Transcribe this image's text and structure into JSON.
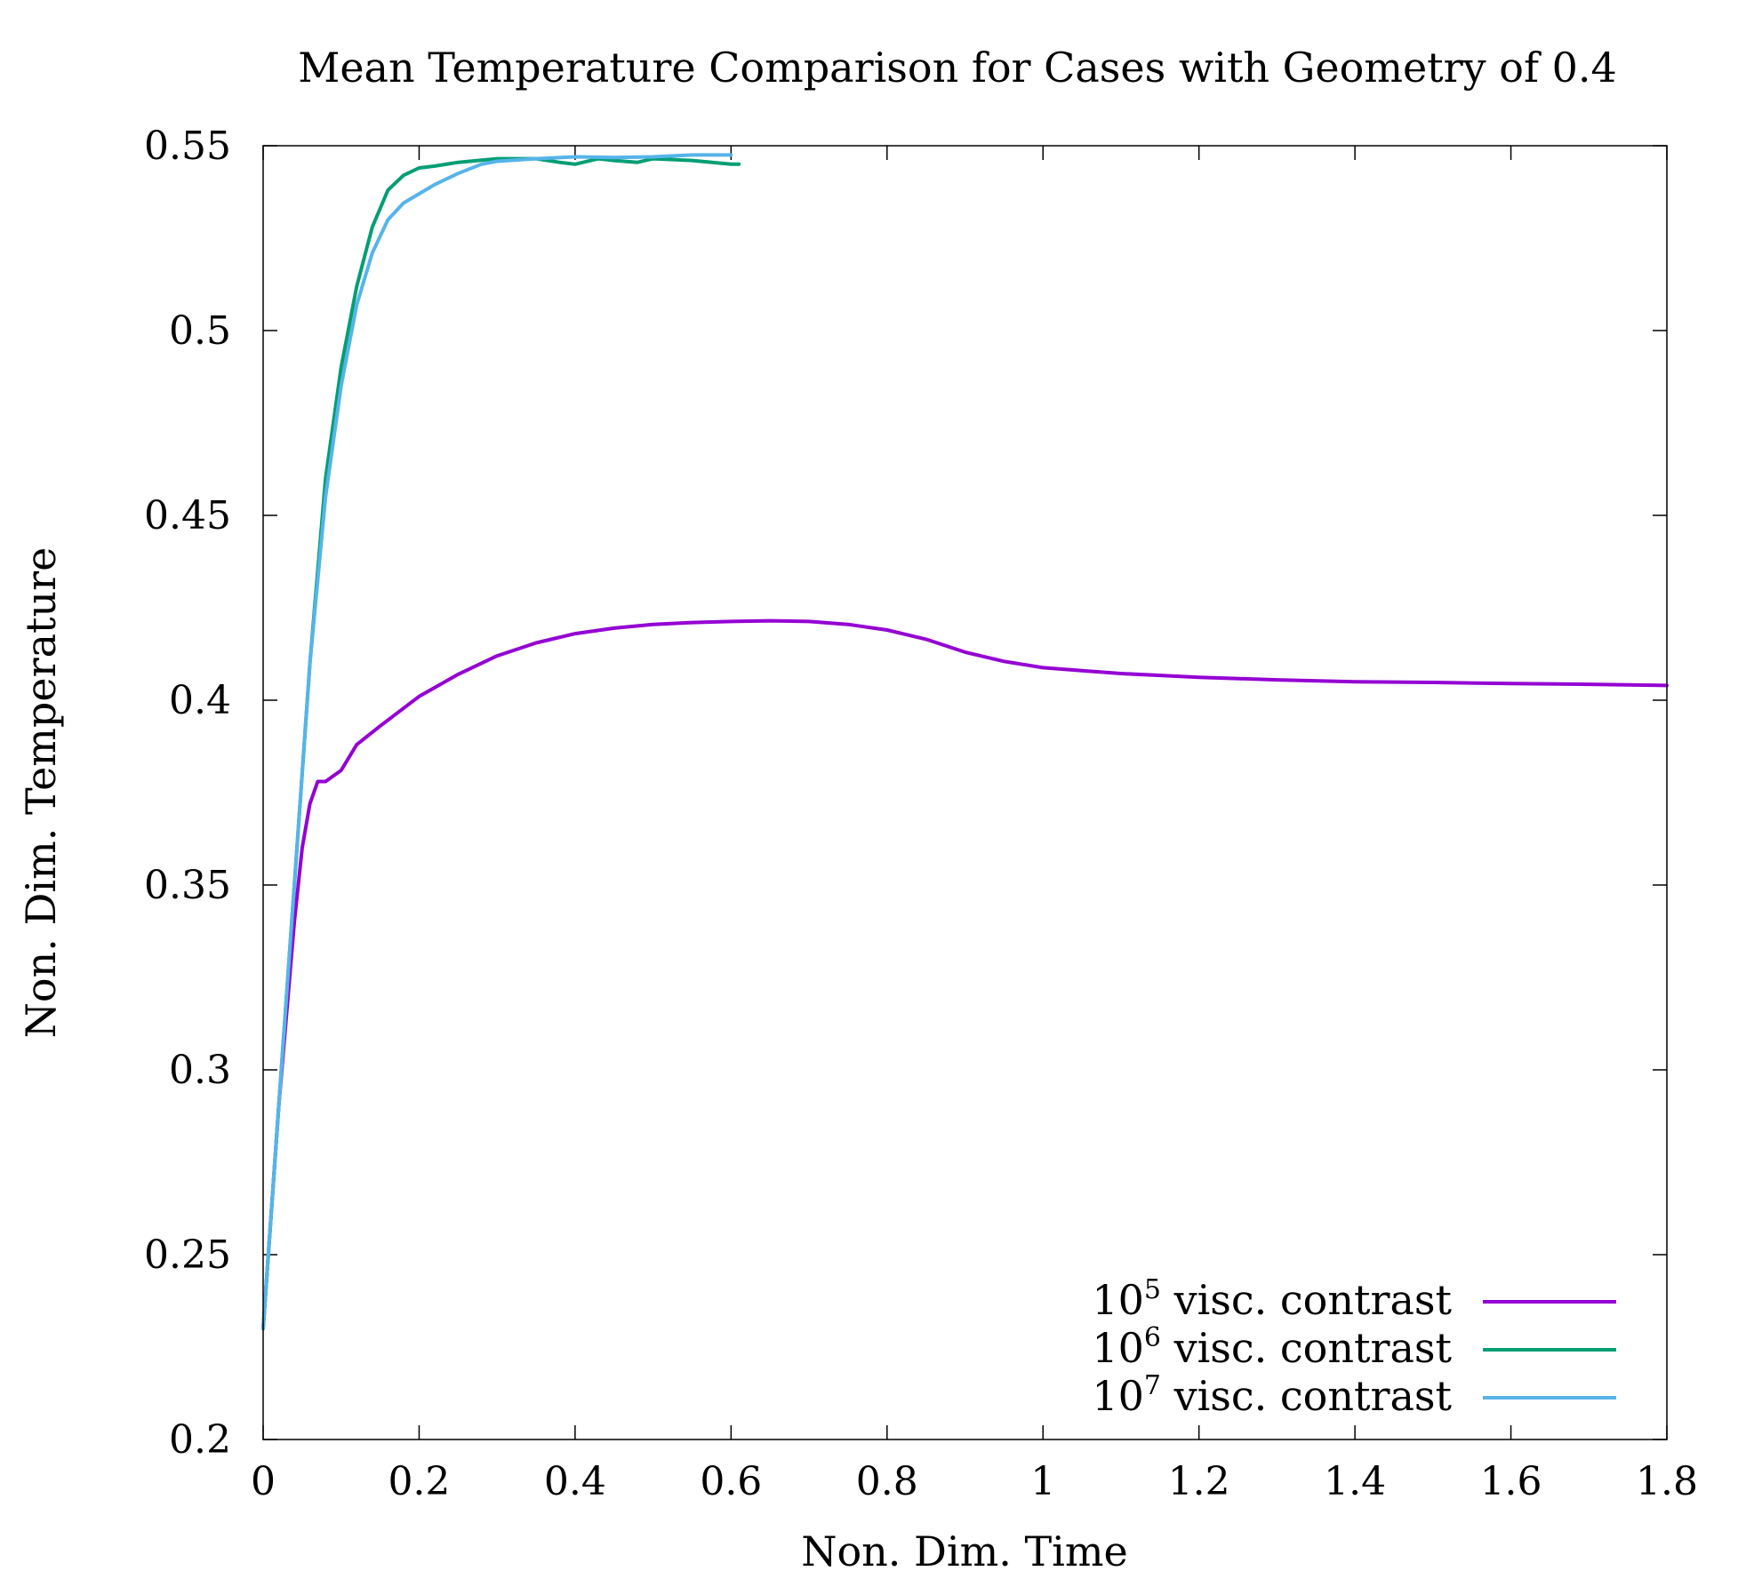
{
  "chart_data": {
    "type": "line",
    "title": "Mean Temperature Comparison for Cases with Geometry of 0.4",
    "xlabel": "Non. Dim. Time",
    "ylabel": "Non. Dim. Temperature",
    "xlim": [
      0,
      1.8
    ],
    "ylim": [
      0.2,
      0.55
    ],
    "xticks": [
      "0",
      "0.2",
      "0.4",
      "0.6",
      "0.8",
      "1",
      "1.2",
      "1.4",
      "1.6",
      "1.8"
    ],
    "yticks": [
      "0.2",
      "0.25",
      "0.3",
      "0.35",
      "0.4",
      "0.45",
      "0.5",
      "0.55"
    ],
    "grid": false,
    "legend_position": "bottom-right",
    "series": [
      {
        "name": "10^5 visc. contrast",
        "legend_base": "10",
        "legend_exp": "5",
        "legend_text": "visc. contrast",
        "color": "#9400d3",
        "x": [
          0,
          0.02,
          0.04,
          0.05,
          0.06,
          0.07,
          0.08,
          0.1,
          0.12,
          0.15,
          0.2,
          0.25,
          0.3,
          0.35,
          0.4,
          0.45,
          0.5,
          0.55,
          0.6,
          0.65,
          0.7,
          0.75,
          0.8,
          0.85,
          0.9,
          0.95,
          1.0,
          1.05,
          1.1,
          1.2,
          1.3,
          1.4,
          1.5,
          1.6,
          1.7,
          1.8
        ],
        "y": [
          0.23,
          0.29,
          0.34,
          0.36,
          0.372,
          0.378,
          0.378,
          0.381,
          0.388,
          0.393,
          0.401,
          0.407,
          0.412,
          0.4155,
          0.418,
          0.4195,
          0.4205,
          0.421,
          0.4213,
          0.4215,
          0.4213,
          0.4205,
          0.419,
          0.4165,
          0.413,
          0.4105,
          0.4088,
          0.408,
          0.4072,
          0.4062,
          0.4055,
          0.405,
          0.4048,
          0.4045,
          0.4043,
          0.404
        ]
      },
      {
        "name": "10^6 visc. contrast",
        "legend_base": "10",
        "legend_exp": "6",
        "legend_text": "visc. contrast",
        "color": "#009e73",
        "x": [
          0,
          0.02,
          0.04,
          0.06,
          0.08,
          0.1,
          0.12,
          0.14,
          0.16,
          0.18,
          0.2,
          0.22,
          0.25,
          0.3,
          0.35,
          0.38,
          0.4,
          0.43,
          0.45,
          0.48,
          0.5,
          0.55,
          0.6,
          0.61
        ],
        "y": [
          0.23,
          0.29,
          0.35,
          0.41,
          0.46,
          0.49,
          0.512,
          0.528,
          0.538,
          0.542,
          0.544,
          0.5445,
          0.5455,
          0.5465,
          0.5465,
          0.5455,
          0.545,
          0.5465,
          0.546,
          0.5455,
          0.5465,
          0.546,
          0.545,
          0.545
        ]
      },
      {
        "name": "10^7 visc. contrast",
        "legend_base": "10",
        "legend_exp": "7",
        "legend_text": "visc. contrast",
        "color": "#56b4e9",
        "x": [
          0,
          0.02,
          0.04,
          0.06,
          0.08,
          0.1,
          0.12,
          0.14,
          0.16,
          0.18,
          0.2,
          0.22,
          0.25,
          0.28,
          0.3,
          0.35,
          0.4,
          0.45,
          0.5,
          0.55,
          0.6
        ],
        "y": [
          0.23,
          0.29,
          0.35,
          0.41,
          0.455,
          0.485,
          0.507,
          0.521,
          0.53,
          0.5345,
          0.537,
          0.5395,
          0.5425,
          0.545,
          0.5458,
          0.5465,
          0.547,
          0.5468,
          0.547,
          0.5475,
          0.5475
        ]
      }
    ]
  }
}
